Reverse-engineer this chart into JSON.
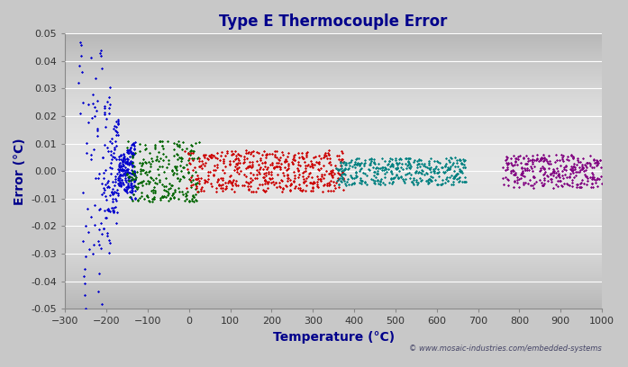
{
  "title": "Type E Thermocouple Error",
  "xlabel": "Temperature (°C)",
  "ylabel": "Error (°C)",
  "xlim": [
    -300,
    1000
  ],
  "ylim": [
    -0.05,
    0.05
  ],
  "xticks": [
    -300,
    -200,
    -100,
    0,
    100,
    200,
    300,
    400,
    500,
    600,
    700,
    800,
    900,
    1000
  ],
  "yticks": [
    -0.05,
    -0.04,
    -0.03,
    -0.02,
    -0.01,
    0.0,
    0.01,
    0.02,
    0.03,
    0.04,
    0.05
  ],
  "bg_top": "#c0c0c0",
  "bg_mid": "#e8e8e8",
  "bg_bot": "#c0c0c0",
  "copyright": "© www.mosaic-industries.com/embedded-systems",
  "title_color": "#00008B",
  "label_color": "#00008B",
  "tick_color": "#333333",
  "grid_color": "#ffffff",
  "blue_color": "#0000CD",
  "green_color": "#006400",
  "red_color": "#CC0000",
  "teal_color": "#008080",
  "purple_color": "#800080",
  "marker_size": 2.5
}
